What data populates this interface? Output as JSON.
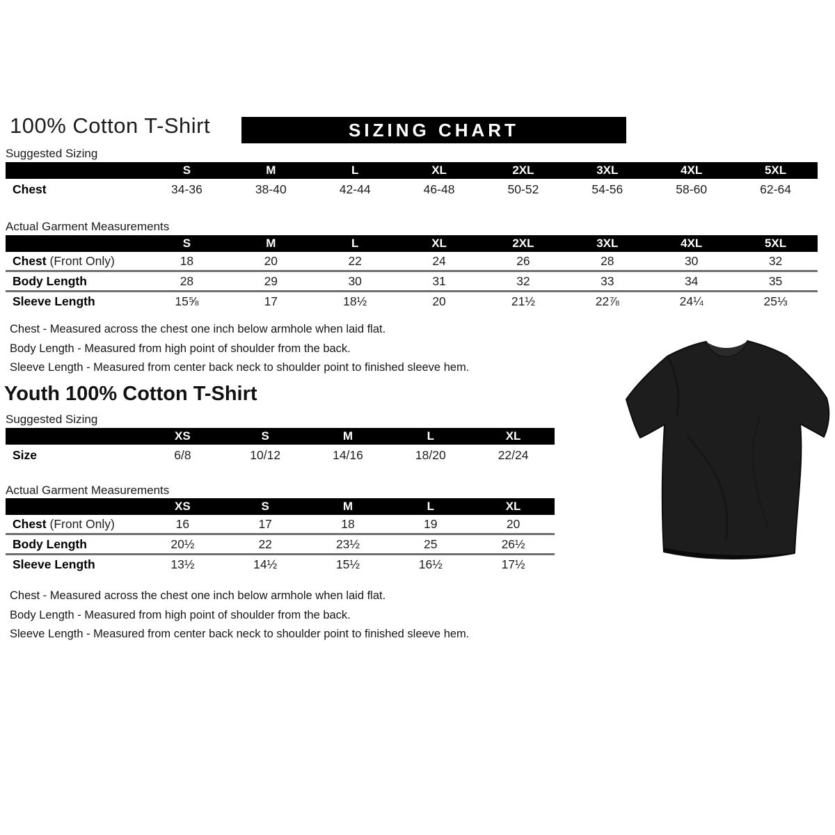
{
  "page": {
    "title": "100% Cotton T-Shirt",
    "banner": "SIZING CHART",
    "youth_title": "Youth 100% Cotton T-Shirt"
  },
  "adult": {
    "suggested_label": "Suggested Sizing",
    "measurements_label": "Actual Garment Measurements",
    "suggested": {
      "sizes": [
        "S",
        "M",
        "L",
        "XL",
        "2XL",
        "3XL",
        "4XL",
        "5XL"
      ],
      "rows": [
        {
          "label": "Chest",
          "suffix": "",
          "values": [
            "34-36",
            "38-40",
            "42-44",
            "46-48",
            "50-52",
            "54-56",
            "58-60",
            "62-64"
          ]
        }
      ]
    },
    "measurements": {
      "sizes": [
        "S",
        "M",
        "L",
        "XL",
        "2XL",
        "3XL",
        "4XL",
        "5XL"
      ],
      "rows": [
        {
          "label": "Chest",
          "suffix": "(Front Only)",
          "values": [
            "18",
            "20",
            "22",
            "24",
            "26",
            "28",
            "30",
            "32"
          ]
        },
        {
          "label": "Body Length",
          "suffix": "",
          "values": [
            "28",
            "29",
            "30",
            "31",
            "32",
            "33",
            "34",
            "35"
          ]
        },
        {
          "label": "Sleeve Length",
          "suffix": "",
          "values": [
            "15⅝",
            "17",
            "18½",
            "20",
            "21½",
            "22⅞",
            "24¼",
            "25⅓"
          ]
        }
      ]
    },
    "notes": [
      "Chest - Measured across the chest one inch below armhole when laid flat.",
      "Body Length - Measured from high point of shoulder from the back.",
      "Sleeve Length - Measured from center back neck to shoulder point to finished sleeve hem."
    ]
  },
  "youth": {
    "suggested_label": "Suggested Sizing",
    "measurements_label": "Actual Garment Measurements",
    "suggested": {
      "sizes": [
        "XS",
        "S",
        "M",
        "L",
        "XL"
      ],
      "rows": [
        {
          "label": "Size",
          "suffix": "",
          "values": [
            "6/8",
            "10/12",
            "14/16",
            "18/20",
            "22/24"
          ]
        }
      ]
    },
    "measurements": {
      "sizes": [
        "XS",
        "S",
        "M",
        "L",
        "XL"
      ],
      "rows": [
        {
          "label": "Chest",
          "suffix": "(Front Only)",
          "values": [
            "16",
            "17",
            "18",
            "19",
            "20"
          ]
        },
        {
          "label": "Body Length",
          "suffix": "",
          "values": [
            "20½",
            "22",
            "23½",
            "25",
            "26½"
          ]
        },
        {
          "label": "Sleeve Length",
          "suffix": "",
          "values": [
            "13½",
            "14½",
            "15½",
            "16½",
            "17½"
          ]
        }
      ]
    },
    "notes": [
      "Chest - Measured across the chest one inch below armhole when laid flat.",
      "Body Length - Measured from high point of shoulder from the back.",
      "Sleeve Length - Measured from center back neck to shoulder point to finished sleeve hem."
    ]
  },
  "colors": {
    "banner_bg": "#000000",
    "banner_text": "#ffffff",
    "row_divider": "#6f6f6f",
    "tshirt": "#1d1d1d",
    "tshirt_collar": "#2a2a2a"
  },
  "image": {
    "tshirt_alt": "black-tshirt-photo"
  }
}
